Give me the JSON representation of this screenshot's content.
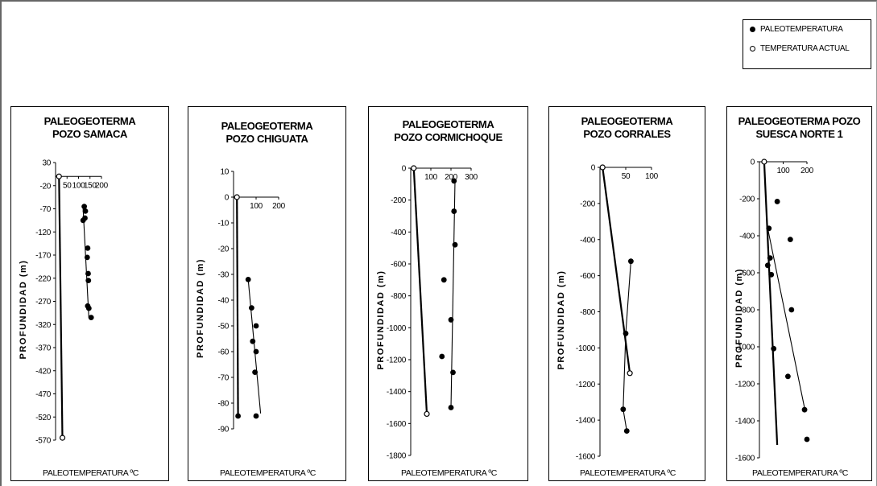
{
  "legend": {
    "filled_label": "PALEOTEMPERATURA",
    "open_label": "TEMPERATURA ACTUAL"
  },
  "colors": {
    "ink": "#000000",
    "frame": "#666666"
  },
  "chart_data": [
    {
      "type": "scatter",
      "title_line1": "PALEOGEOTERMA",
      "title_line2": "POZO SAMACA",
      "xlabel": "PALEOTEMPERATURA ºC",
      "ylabel": "PROFUNDIDAD (m)",
      "xlim": [
        0,
        200
      ],
      "ylim": [
        -570,
        30
      ],
      "xticks": [
        50,
        100,
        150,
        200
      ],
      "xtick_labels": [
        "50",
        "100",
        "150",
        "200"
      ],
      "yticks": [
        30,
        -20,
        -70,
        -120,
        -170,
        -220,
        -270,
        -320,
        -370,
        -420,
        -470,
        -520,
        -570
      ],
      "paleotemperatura": [
        [
          125,
          -65
        ],
        [
          130,
          -75
        ],
        [
          120,
          -95
        ],
        [
          128,
          -90
        ],
        [
          140,
          -155
        ],
        [
          138,
          -175
        ],
        [
          142,
          -210
        ],
        [
          143,
          -225
        ],
        [
          140,
          -280
        ],
        [
          145,
          -285
        ],
        [
          155,
          -305
        ]
      ],
      "temperatura_actual": [
        [
          15,
          0
        ],
        [
          30,
          -565
        ]
      ],
      "lines": [
        [
          [
            15,
            0
          ],
          [
            30,
            -565
          ]
        ],
        [
          [
            120,
            -70
          ],
          [
            145,
            -305
          ]
        ]
      ]
    },
    {
      "type": "scatter",
      "title_line1": "PALEOGEOTERMA",
      "title_line2": "POZO CHIGUATA",
      "xlabel": "PALEOTEMPERATURA ºC",
      "ylabel": "PROFUNDIDAD (m)",
      "xlim": [
        0,
        200
      ],
      "ylim": [
        -90,
        10
      ],
      "xticks": [
        100,
        200
      ],
      "xtick_labels": [
        "100",
        "200"
      ],
      "yticks": [
        10,
        0,
        -10,
        -20,
        -30,
        -40,
        -50,
        -60,
        -70,
        -80,
        -90
      ],
      "paleotemperatura": [
        [
          65,
          -32
        ],
        [
          80,
          -43
        ],
        [
          100,
          -50
        ],
        [
          85,
          -56
        ],
        [
          100,
          -60
        ],
        [
          95,
          -68
        ],
        [
          100,
          -85
        ],
        [
          20,
          -85
        ]
      ],
      "temperatura_actual": [
        [
          15,
          0
        ]
      ],
      "lines": [
        [
          [
            15,
            0
          ],
          [
            20,
            -85
          ]
        ],
        [
          [
            65,
            -32
          ],
          [
            120,
            -84
          ]
        ]
      ]
    },
    {
      "type": "scatter",
      "title_line1": "PALEOGEOTERMA",
      "title_line2": "POZO CORMICHOQUE",
      "xlabel": "PALEOTEMPERATURA ºC",
      "ylabel": "PROFUNDIDAD (m)",
      "xlim": [
        0,
        300
      ],
      "ylim": [
        -1800,
        0
      ],
      "xticks": [
        100,
        200,
        300
      ],
      "xtick_labels": [
        "100",
        "200",
        "300"
      ],
      "yticks": [
        0,
        -200,
        -400,
        -600,
        -800,
        -1000,
        -1200,
        -1400,
        -1600,
        -1800
      ],
      "paleotemperatura": [
        [
          215,
          -80
        ],
        [
          215,
          -270
        ],
        [
          220,
          -480
        ],
        [
          165,
          -700
        ],
        [
          200,
          -950
        ],
        [
          155,
          -1180
        ],
        [
          210,
          -1280
        ],
        [
          200,
          -1500
        ]
      ],
      "temperatura_actual": [
        [
          15,
          0
        ],
        [
          80,
          -1540
        ]
      ],
      "lines": [
        [
          [
            15,
            0
          ],
          [
            80,
            -1540
          ]
        ],
        [
          [
            220,
            -80
          ],
          [
            200,
            -1500
          ]
        ]
      ]
    },
    {
      "type": "scatter",
      "title_line1": "PALEOGEOTERMA",
      "title_line2": "POZO CORRALES",
      "xlabel": "PALEOTEMPERATURA ºC",
      "ylabel": "PROFUNDIDAD (m)",
      "xlim": [
        0,
        100
      ],
      "ylim": [
        -1600,
        0
      ],
      "xticks": [
        50,
        100
      ],
      "xtick_labels": [
        "50",
        "100"
      ],
      "yticks": [
        0,
        -200,
        -400,
        -600,
        -800,
        -1000,
        -1200,
        -1400,
        -1600
      ],
      "paleotemperatura": [
        [
          60,
          -520
        ],
        [
          50,
          -920
        ],
        [
          45,
          -1340
        ],
        [
          52,
          -1460
        ]
      ],
      "temperatura_actual": [
        [
          5,
          0
        ],
        [
          58,
          -1140
        ]
      ],
      "lines": [
        [
          [
            5,
            0
          ],
          [
            58,
            -1140
          ]
        ],
        [
          [
            60,
            -520
          ],
          [
            50,
            -920
          ],
          [
            45,
            -1340
          ],
          [
            52,
            -1460
          ]
        ]
      ]
    },
    {
      "type": "scatter",
      "title_line1": "PALEOGEOTERMA POZO",
      "title_line2": "SUESCA NORTE 1",
      "xlabel": "PALEOTEMPERATURA ºC",
      "ylabel": "PROFUNDIDAD (m)",
      "xlim": [
        0,
        200
      ],
      "ylim": [
        -1600,
        0
      ],
      "xticks": [
        100,
        200
      ],
      "xtick_labels": [
        "100",
        "200"
      ],
      "yticks": [
        0,
        -200,
        -400,
        -600,
        -800,
        -1000,
        -1200,
        -1400,
        -1600
      ],
      "paleotemperatura": [
        [
          75,
          -215
        ],
        [
          40,
          -360
        ],
        [
          130,
          -420
        ],
        [
          45,
          -520
        ],
        [
          35,
          -560
        ],
        [
          50,
          -610
        ],
        [
          135,
          -800
        ],
        [
          60,
          -1010
        ],
        [
          120,
          -1160
        ],
        [
          190,
          -1340
        ],
        [
          200,
          -1500
        ]
      ],
      "temperatura_actual": [
        [
          20,
          0
        ]
      ],
      "lines": [
        [
          [
            20,
            0
          ],
          [
            75,
            -1530
          ]
        ],
        [
          [
            35,
            -360
          ],
          [
            190,
            -1330
          ]
        ]
      ]
    }
  ]
}
